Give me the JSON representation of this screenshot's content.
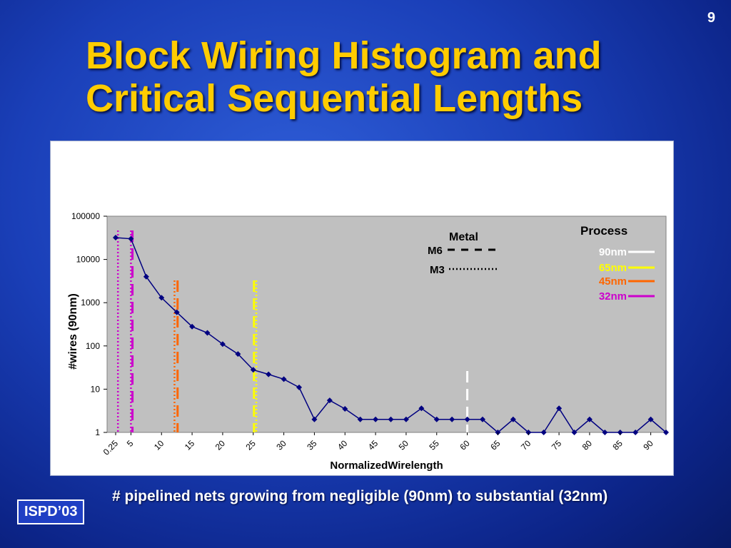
{
  "slide": {
    "number": "9",
    "title_line1": "Block Wiring Histogram and",
    "title_line2": "Critical Sequential Lengths",
    "caption": "# pipelined nets growing from negligible (90nm) to substantial (32nm)",
    "badge": "ISPD’03"
  },
  "colors": {
    "series": "#000080",
    "plot_bg": "#c0c0c0",
    "p90": "#ffffff",
    "p65": "#ffff00",
    "p45": "#ff6600",
    "p32": "#cc00cc"
  },
  "chart_data": {
    "type": "line",
    "title": "",
    "xlabel": "NormalizedWirelength",
    "ylabel": "#wires (90nm)",
    "yscale": "log",
    "ylim": [
      1,
      100000
    ],
    "yticks": [
      "100000",
      "10000",
      "1000",
      "100",
      "10",
      "1"
    ],
    "xticks": [
      "0.25",
      "5",
      "10",
      "15",
      "20",
      "25",
      "30",
      "35",
      "40",
      "45",
      "50",
      "55",
      "60",
      "65",
      "70",
      "75",
      "80",
      "85",
      "90"
    ],
    "grid": false,
    "series": [
      {
        "name": "",
        "values": [
          32000,
          30000,
          4000,
          1300,
          600,
          280,
          200,
          110,
          65,
          28,
          22,
          17,
          11,
          2,
          5.5,
          3.5,
          2,
          2,
          2,
          2,
          3.6,
          2,
          2,
          2,
          2,
          1,
          2,
          1,
          1,
          3.6,
          1,
          2,
          1,
          1,
          1,
          2,
          1
        ]
      }
    ],
    "legend_metal": {
      "title": "Metal",
      "items": [
        {
          "label": "M6",
          "style": "dashed"
        },
        {
          "label": "M3",
          "style": "dotted"
        }
      ]
    },
    "legend_process": {
      "title": "Process",
      "items": [
        {
          "label": "90nm",
          "color": "#ffffff"
        },
        {
          "label": "65nm",
          "color": "#ffff00"
        },
        {
          "label": "45nm",
          "color": "#ff6600"
        },
        {
          "label": "32nm",
          "color": "#cc00cc"
        }
      ]
    },
    "critical_lengths": [
      {
        "process": "90nm",
        "metal": "M6",
        "x_index": 23
      },
      {
        "process": "65nm",
        "metal": "M6",
        "x_index": 9.05
      },
      {
        "process": "65nm",
        "metal": "M3",
        "x_index": 9.2
      },
      {
        "process": "45nm",
        "metal": "M6",
        "x_index": 4.05
      },
      {
        "process": "45nm",
        "metal": "M3",
        "x_index": 3.85
      },
      {
        "process": "32nm",
        "metal": "M6",
        "x_index": 1.1
      },
      {
        "process": "32nm",
        "metal": "M3",
        "x_index": 0.15
      },
      {
        "process": "32nm",
        "metal": "M3",
        "x_index": 1.0
      }
    ]
  }
}
